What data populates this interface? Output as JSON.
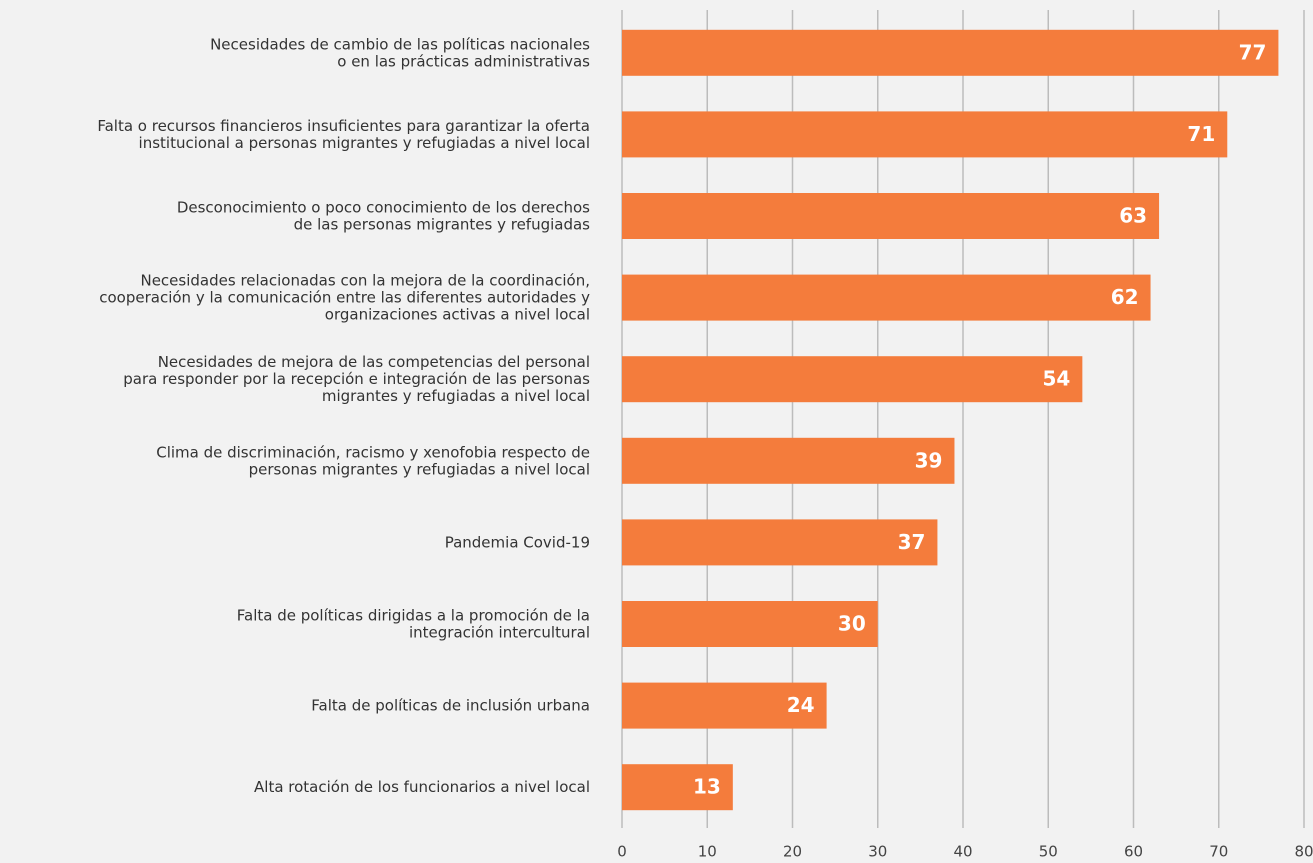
{
  "chart_data": {
    "type": "barh",
    "categories": [
      "Necesidades de cambio de las políticas nacionales\no en las prácticas administrativas",
      "Falta o recursos financieros insuficientes para garantizar la oferta\ninstitucional a personas migrantes y refugiadas a nivel local",
      "Desconocimiento o poco conocimiento de los derechos\nde las personas migrantes y refugiadas",
      "Necesidades relacionadas con la mejora de la coordinación,\ncooperación y la comunicación entre las diferentes autoridades y\norganizaciones activas a nivel local",
      "Necesidades de mejora de las competencias del personal\npara responder por la recepción e integración de las personas\nmigrantes y refugiadas a nivel local",
      "Clima de discriminación,  racismo y xenofobia respecto de\npersonas migrantes y refugiadas a nivel local",
      "Pandemia Covid-19",
      "Falta de políticas dirigidas a la promoción de la\nintegración intercultural",
      "Falta de políticas de inclusión urbana",
      "Alta rotación de los funcionarios a nivel local"
    ],
    "values": [
      77,
      71,
      63,
      62,
      54,
      39,
      37,
      30,
      24,
      13
    ],
    "color": "#f47c3c",
    "xlim": [
      0,
      80
    ],
    "xticks": [
      0,
      10,
      20,
      30,
      40,
      50,
      60,
      70,
      80
    ],
    "grid": true
  }
}
